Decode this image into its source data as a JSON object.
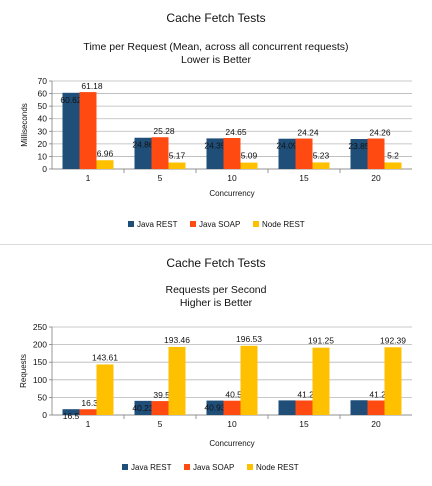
{
  "colors": {
    "java_rest": "#1f4e79",
    "java_soap": "#ff4a12",
    "node_rest": "#ffc000",
    "grid": "#b7b7b7",
    "axis": "#7f7f7f"
  },
  "chart_data": [
    {
      "type": "bar",
      "title": "Cache Fetch Tests",
      "subtitle_lines": [
        "Time per Request (Mean, across all concurrent requests)",
        "Lower is Better"
      ],
      "xlabel": "Concurrency",
      "ylabel": "Milliseconds",
      "ylim": [
        0,
        70
      ],
      "yticks": [
        0,
        10,
        20,
        30,
        40,
        50,
        60,
        70
      ],
      "grid": true,
      "legend": "bottom",
      "categories": [
        "1",
        "5",
        "10",
        "15",
        "20"
      ],
      "series": [
        {
          "name": "Java REST",
          "values": [
            60.62,
            24.86,
            24.35,
            24.09,
            23.85
          ],
          "labels": [
            "60.62",
            "24.86",
            "24.35",
            "24.09",
            "23.85"
          ]
        },
        {
          "name": "Java SOAP",
          "values": [
            61.18,
            25.28,
            24.65,
            24.24,
            24.26
          ],
          "labels": [
            "61.18",
            "25.28",
            "24.65",
            "24.24",
            "24.26"
          ]
        },
        {
          "name": "Node REST",
          "values": [
            6.96,
            5.17,
            5.09,
            5.23,
            5.2
          ],
          "labels": [
            "6.96",
            "5.17",
            "5.09",
            "5.23",
            "5.2"
          ]
        }
      ]
    },
    {
      "type": "bar",
      "title": "Cache Fetch Tests",
      "subtitle_lines": [
        "Requests per Second",
        "Higher is Better"
      ],
      "xlabel": "Concurrency",
      "ylabel": "Requests",
      "ylim": [
        0,
        250
      ],
      "yticks": [
        0,
        50,
        100,
        150,
        200,
        250
      ],
      "grid": true,
      "legend": "bottom",
      "categories": [
        "1",
        "5",
        "10",
        "15",
        "20"
      ],
      "series": [
        {
          "name": "Java REST",
          "values": [
            16.5,
            40.23,
            40.93,
            41.5,
            41.9
          ],
          "labels": [
            "16.5",
            "40.23",
            "40.93",
            "",
            ""
          ]
        },
        {
          "name": "Java SOAP",
          "values": [
            16.35,
            39.56,
            40.57,
            41.26,
            41.22
          ],
          "labels": [
            "16.35",
            "39.56",
            "40.57",
            "41.26",
            "41.22"
          ]
        },
        {
          "name": "Node REST",
          "values": [
            143.61,
            193.46,
            196.53,
            191.25,
            192.39
          ],
          "labels": [
            "143.61",
            "193.46",
            "196.53",
            "191.25",
            "192.39"
          ]
        }
      ]
    }
  ]
}
